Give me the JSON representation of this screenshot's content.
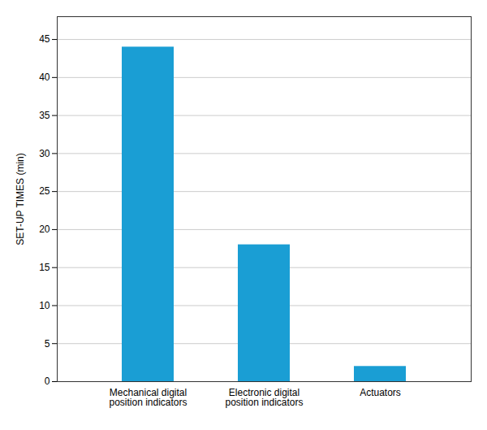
{
  "chart_data": {
    "type": "bar",
    "categories": [
      "Mechanical digital\nposition indicators",
      "Electronic digital\nposition indicators",
      "Actuators"
    ],
    "values": [
      44,
      18,
      2
    ],
    "color": "#1a9ed4",
    "ylabel": "SET-UP TIMES (min)",
    "ylim": [
      0,
      48
    ],
    "yticks": [
      0,
      5,
      10,
      15,
      20,
      25,
      30,
      35,
      40,
      45
    ],
    "grid": true
  }
}
